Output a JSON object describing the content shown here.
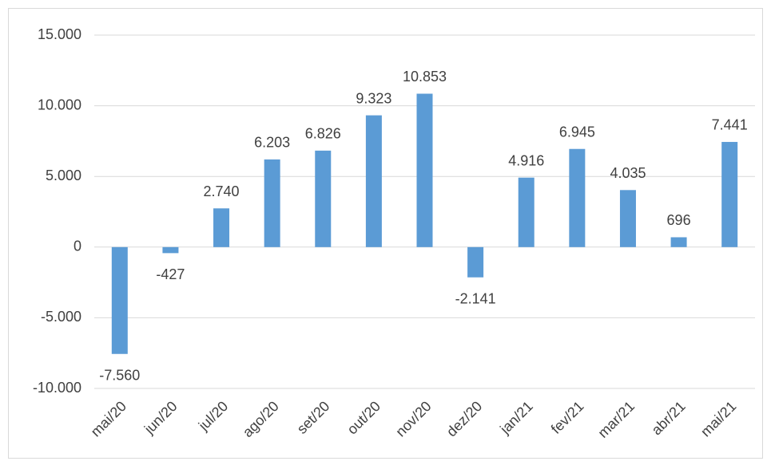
{
  "chart_data": {
    "type": "bar",
    "categories": [
      "mai/20",
      "jun/20",
      "jul/20",
      "ago/20",
      "set/20",
      "out/20",
      "nov/20",
      "dez/20",
      "jan/21",
      "fev/21",
      "mar/21",
      "abr/21",
      "mai/21"
    ],
    "values": [
      -7560,
      -427,
      2740,
      6203,
      6826,
      9323,
      10853,
      -2141,
      4916,
      6945,
      4035,
      696,
      7441
    ],
    "value_labels": [
      "-7.560",
      "-427",
      "2.740",
      "6.203",
      "6.826",
      "9.323",
      "10.853",
      "-2.141",
      "4.916",
      "6.945",
      "4.035",
      "696",
      "7.441"
    ],
    "color": "#5b9bd5",
    "ylim": [
      -10000,
      15000
    ],
    "yticks": [
      {
        "value": -10000,
        "label": "-10.000"
      },
      {
        "value": -5000,
        "label": "-5.000"
      },
      0,
      {
        "value": 5000,
        "label": "5.000"
      },
      {
        "value": 10000,
        "label": "10.000"
      },
      {
        "value": 15000,
        "label": "15.000"
      }
    ],
    "grid": true
  }
}
